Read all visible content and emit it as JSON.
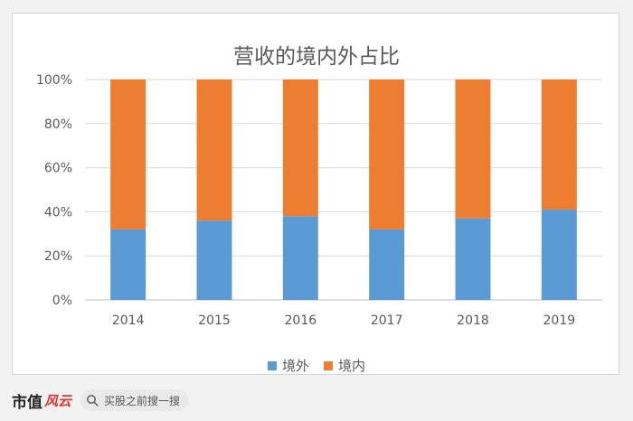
{
  "chart_data": {
    "type": "bar",
    "stacked": true,
    "title": "营收的境内外占比",
    "categories": [
      "2014",
      "2015",
      "2016",
      "2017",
      "2018",
      "2019"
    ],
    "series": [
      {
        "name": "境外",
        "color": "#5b9bd5",
        "values": [
          32,
          36,
          38,
          32,
          37,
          41
        ]
      },
      {
        "name": "境内",
        "color": "#ed7d31",
        "values": [
          68,
          64,
          62,
          68,
          63,
          59
        ]
      }
    ],
    "y_ticks": [
      "0%",
      "20%",
      "40%",
      "60%",
      "80%",
      "100%"
    ],
    "ylim": [
      0,
      100
    ],
    "grid": true,
    "legend_position": "bottom"
  },
  "footer": {
    "brand": "市值",
    "brand_logo": "风云",
    "search_text": "买股之前搜一搜"
  }
}
